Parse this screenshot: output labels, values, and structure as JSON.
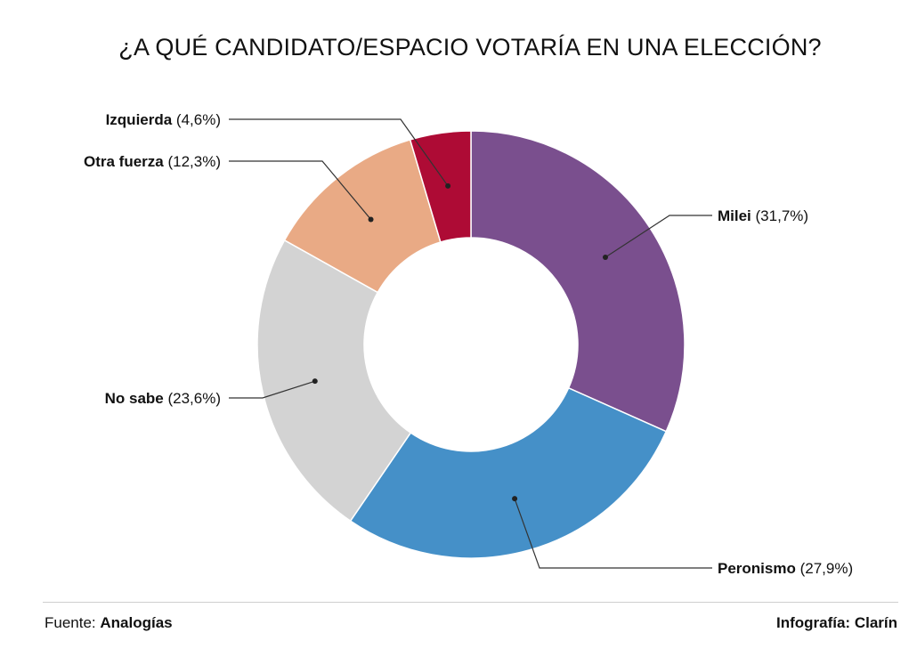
{
  "chart_data": {
    "type": "pie",
    "donut": true,
    "title": "¿A QUÉ CANDIDATO/ESPACIO VOTARÍA EN UNA ELECCIÓN?",
    "slices": [
      {
        "label": "Milei",
        "value_label": "(31,7%)",
        "value": 31.7,
        "color": "#7a4f8e"
      },
      {
        "label": "Peronismo",
        "value_label": "(27,9%)",
        "value": 27.9,
        "color": "#4590c8"
      },
      {
        "label": "No sabe",
        "value_label": "(23,6%)",
        "value": 23.6,
        "color": "#d3d3d3"
      },
      {
        "label": "Otra fuerza",
        "value_label": "(12,3%)",
        "value": 12.3,
        "color": "#e9aa85"
      },
      {
        "label": "Izquierda",
        "value_label": "(4,6%)",
        "value": 4.6,
        "color": "#ae0b35"
      }
    ]
  },
  "footer": {
    "source_prefix": "Fuente: ",
    "source_name": "Analogías",
    "credit": "Infografía: Clarín"
  }
}
